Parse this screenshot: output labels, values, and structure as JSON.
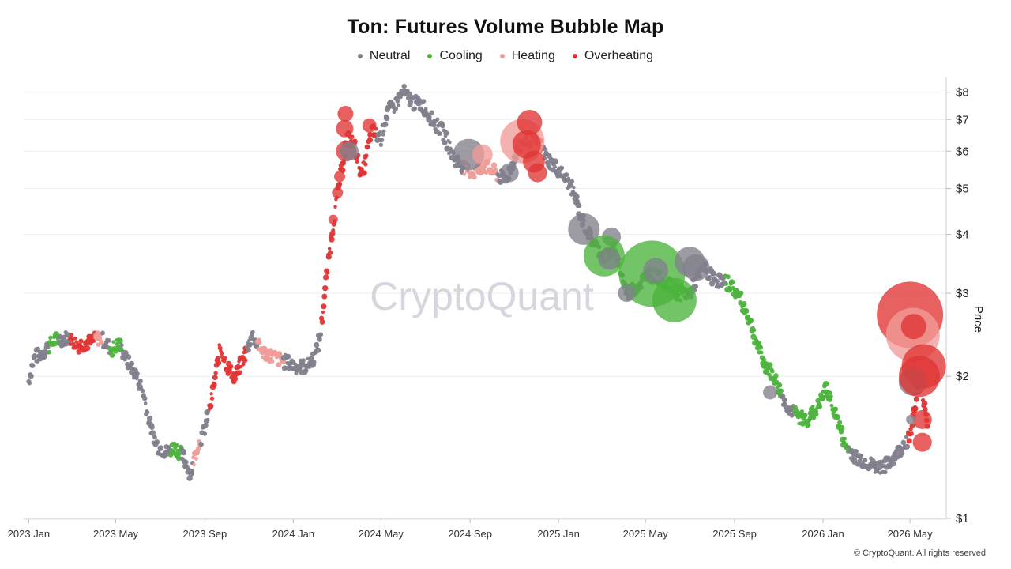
{
  "chart_data": {
    "type": "scatter",
    "title": "Ton: Futures Volume Bubble Map",
    "ylabel": "Price",
    "yscale": "log",
    "ylim": [
      1,
      8.4
    ],
    "y_ticks": [
      {
        "value": 8,
        "label": "$8"
      },
      {
        "value": 7,
        "label": "$7"
      },
      {
        "value": 6,
        "label": "$6"
      },
      {
        "value": 5,
        "label": "$5"
      },
      {
        "value": 4,
        "label": "$4"
      },
      {
        "value": 3,
        "label": "$3"
      },
      {
        "value": 2,
        "label": "$2"
      },
      {
        "value": 1,
        "label": "$1"
      }
    ],
    "x_ticks": [
      {
        "date": "2023-01-01",
        "label": "2023 Jan"
      },
      {
        "date": "2023-05-01",
        "label": "2023 May"
      },
      {
        "date": "2023-09-01",
        "label": "2023 Sep"
      },
      {
        "date": "2024-01-01",
        "label": "2024 Jan"
      },
      {
        "date": "2024-05-01",
        "label": "2024 May"
      },
      {
        "date": "2024-09-01",
        "label": "2024 Sep"
      },
      {
        "date": "2025-01-01",
        "label": "2025 Jan"
      },
      {
        "date": "2025-05-01",
        "label": "2025 May"
      },
      {
        "date": "2025-09-01",
        "label": "2025 Sep"
      },
      {
        "date": "2026-01-01",
        "label": "2026 Jan"
      },
      {
        "date": "2026-05-01",
        "label": "2026 May"
      }
    ],
    "xlim": [
      "2022-12-25",
      "2026-06-20"
    ],
    "legend_position": "top-center",
    "series": [
      {
        "name": "Neutral",
        "color": "#81808c"
      },
      {
        "name": "Cooling",
        "color": "#4cb33c"
      },
      {
        "name": "Heating",
        "color": "#ef9c98"
      },
      {
        "name": "Overheating",
        "color": "#e03535"
      }
    ],
    "price_path": [
      [
        "2023-01-01",
        1.95
      ],
      [
        "2023-01-07",
        2.18
      ],
      [
        "2023-01-20",
        2.25
      ],
      [
        "2023-02-05",
        2.38
      ],
      [
        "2023-02-25",
        2.42
      ],
      [
        "2023-03-10",
        2.33
      ],
      [
        "2023-03-25",
        2.36
      ],
      [
        "2023-04-10",
        2.42
      ],
      [
        "2023-04-25",
        2.28
      ],
      [
        "2023-05-05",
        2.35
      ],
      [
        "2023-05-15",
        2.18
      ],
      [
        "2023-05-28",
        2.02
      ],
      [
        "2023-06-08",
        1.85
      ],
      [
        "2023-06-18",
        1.55
      ],
      [
        "2023-06-28",
        1.42
      ],
      [
        "2023-07-10",
        1.38
      ],
      [
        "2023-07-22",
        1.42
      ],
      [
        "2023-08-02",
        1.35
      ],
      [
        "2023-08-12",
        1.25
      ],
      [
        "2023-08-22",
        1.42
      ],
      [
        "2023-09-01",
        1.55
      ],
      [
        "2023-09-10",
        1.78
      ],
      [
        "2023-09-22",
        2.3
      ],
      [
        "2023-10-02",
        2.1
      ],
      [
        "2023-10-12",
        1.98
      ],
      [
        "2023-10-25",
        2.2
      ],
      [
        "2023-11-05",
        2.45
      ],
      [
        "2023-11-20",
        2.25
      ],
      [
        "2023-12-05",
        2.2
      ],
      [
        "2023-12-20",
        2.15
      ],
      [
        "2024-01-05",
        2.1
      ],
      [
        "2024-01-20",
        2.1
      ],
      [
        "2024-02-01",
        2.22
      ],
      [
        "2024-02-08",
        2.5
      ],
      [
        "2024-02-18",
        3.5
      ],
      [
        "2024-02-25",
        4.2
      ],
      [
        "2024-03-05",
        5.2
      ],
      [
        "2024-03-15",
        6.4
      ],
      [
        "2024-03-25",
        6.2
      ],
      [
        "2024-04-05",
        5.3
      ],
      [
        "2024-04-18",
        6.6
      ],
      [
        "2024-05-01",
        6.4
      ],
      [
        "2024-05-10",
        7.3
      ],
      [
        "2024-05-20",
        7.5
      ],
      [
        "2024-06-01",
        8.0
      ],
      [
        "2024-06-15",
        7.6
      ],
      [
        "2024-06-28",
        7.5
      ],
      [
        "2024-07-10",
        7.0
      ],
      [
        "2024-07-25",
        6.6
      ],
      [
        "2024-08-10",
        5.8
      ],
      [
        "2024-08-25",
        5.5
      ],
      [
        "2024-09-05",
        5.4
      ],
      [
        "2024-09-20",
        5.6
      ],
      [
        "2024-10-05",
        5.4
      ],
      [
        "2024-10-20",
        5.2
      ],
      [
        "2024-11-05",
        6.0
      ],
      [
        "2024-11-20",
        6.4
      ],
      [
        "2024-12-05",
        6.2
      ],
      [
        "2024-12-20",
        5.7
      ],
      [
        "2025-01-05",
        5.4
      ],
      [
        "2025-01-20",
        5.0
      ],
      [
        "2025-02-05",
        4.2
      ],
      [
        "2025-02-20",
        3.8
      ],
      [
        "2025-03-05",
        3.6
      ],
      [
        "2025-03-20",
        3.7
      ],
      [
        "2025-04-05",
        3.0
      ],
      [
        "2025-04-20",
        3.1
      ],
      [
        "2025-05-05",
        3.3
      ],
      [
        "2025-05-25",
        3.2
      ],
      [
        "2025-06-15",
        3.0
      ],
      [
        "2025-07-01",
        3.0
      ],
      [
        "2025-07-20",
        3.4
      ],
      [
        "2025-08-05",
        3.2
      ],
      [
        "2025-08-25",
        3.15
      ],
      [
        "2025-09-10",
        2.9
      ],
      [
        "2025-09-25",
        2.55
      ],
      [
        "2025-10-10",
        2.15
      ],
      [
        "2025-10-25",
        2.0
      ],
      [
        "2025-11-10",
        1.75
      ],
      [
        "2025-11-25",
        1.65
      ],
      [
        "2025-12-10",
        1.62
      ],
      [
        "2025-12-25",
        1.72
      ],
      [
        "2026-01-05",
        1.88
      ],
      [
        "2026-01-18",
        1.68
      ],
      [
        "2026-02-01",
        1.42
      ],
      [
        "2026-02-15",
        1.35
      ],
      [
        "2026-03-01",
        1.32
      ],
      [
        "2026-03-15",
        1.28
      ],
      [
        "2026-04-01",
        1.3
      ],
      [
        "2026-04-15",
        1.38
      ],
      [
        "2026-05-01",
        1.5
      ],
      [
        "2026-05-15",
        2.0
      ],
      [
        "2026-05-25",
        1.6
      ]
    ],
    "bubbles": [
      {
        "date": "2024-03-13",
        "price": 7.2,
        "series": "Overheating",
        "size": 10
      },
      {
        "date": "2024-03-12",
        "price": 6.7,
        "series": "Overheating",
        "size": 11
      },
      {
        "date": "2024-03-14",
        "price": 6.0,
        "series": "Overheating",
        "size": 13
      },
      {
        "date": "2024-03-18",
        "price": 6.0,
        "series": "Neutral",
        "size": 12
      },
      {
        "date": "2024-04-15",
        "price": 6.8,
        "series": "Overheating",
        "size": 9
      },
      {
        "date": "2024-03-05",
        "price": 5.3,
        "series": "Overheating",
        "size": 7
      },
      {
        "date": "2024-03-02",
        "price": 4.9,
        "series": "Overheating",
        "size": 7
      },
      {
        "date": "2024-02-25",
        "price": 4.3,
        "series": "Overheating",
        "size": 6
      },
      {
        "date": "2024-08-30",
        "price": 5.9,
        "series": "Neutral",
        "size": 20
      },
      {
        "date": "2024-09-18",
        "price": 5.9,
        "series": "Heating",
        "size": 13
      },
      {
        "date": "2024-11-12",
        "price": 6.3,
        "series": "Heating",
        "size": 28
      },
      {
        "date": "2024-11-22",
        "price": 6.9,
        "series": "Overheating",
        "size": 16
      },
      {
        "date": "2024-11-18",
        "price": 6.2,
        "series": "Overheating",
        "size": 18
      },
      {
        "date": "2024-11-28",
        "price": 5.7,
        "series": "Overheating",
        "size": 14
      },
      {
        "date": "2024-12-03",
        "price": 5.4,
        "series": "Overheating",
        "size": 12
      },
      {
        "date": "2024-10-25",
        "price": 5.4,
        "series": "Neutral",
        "size": 12
      },
      {
        "date": "2025-02-05",
        "price": 4.1,
        "series": "Neutral",
        "size": 20
      },
      {
        "date": "2025-03-15",
        "price": 3.95,
        "series": "Neutral",
        "size": 12
      },
      {
        "date": "2025-03-05",
        "price": 3.6,
        "series": "Cooling",
        "size": 26
      },
      {
        "date": "2025-03-12",
        "price": 3.55,
        "series": "Neutral",
        "size": 14
      },
      {
        "date": "2025-05-10",
        "price": 3.3,
        "series": "Cooling",
        "size": 42
      },
      {
        "date": "2025-05-15",
        "price": 3.35,
        "series": "Neutral",
        "size": 16
      },
      {
        "date": "2025-06-10",
        "price": 2.9,
        "series": "Cooling",
        "size": 28
      },
      {
        "date": "2025-07-01",
        "price": 3.5,
        "series": "Neutral",
        "size": 19
      },
      {
        "date": "2025-07-10",
        "price": 3.4,
        "series": "Neutral",
        "size": 17
      },
      {
        "date": "2025-04-05",
        "price": 3.0,
        "series": "Neutral",
        "size": 11
      },
      {
        "date": "2025-10-20",
        "price": 1.85,
        "series": "Neutral",
        "size": 9
      },
      {
        "date": "2026-05-01",
        "price": 2.7,
        "series": "Overheating",
        "size": 42
      },
      {
        "date": "2026-05-05",
        "price": 2.45,
        "series": "Heating",
        "size": 34
      },
      {
        "date": "2026-05-20",
        "price": 2.1,
        "series": "Overheating",
        "size": 28
      },
      {
        "date": "2026-05-05",
        "price": 1.95,
        "series": "Neutral",
        "size": 18
      },
      {
        "date": "2026-05-14",
        "price": 2.0,
        "series": "Overheating",
        "size": 26
      },
      {
        "date": "2026-05-06",
        "price": 2.55,
        "series": "Overheating",
        "size": 16
      },
      {
        "date": "2026-05-18",
        "price": 1.62,
        "series": "Overheating",
        "size": 12
      },
      {
        "date": "2026-05-18",
        "price": 1.45,
        "series": "Overheating",
        "size": 12
      },
      {
        "date": "2026-05-02",
        "price": 1.62,
        "series": "Neutral",
        "size": 6
      }
    ],
    "segments": [
      {
        "from": "2023-01-01",
        "to": "2023-01-28",
        "series": "Neutral"
      },
      {
        "from": "2023-01-28",
        "to": "2023-02-12",
        "series": "Cooling"
      },
      {
        "from": "2023-02-12",
        "to": "2023-02-26",
        "series": "Neutral"
      },
      {
        "from": "2023-02-26",
        "to": "2023-03-12",
        "series": "Overheating"
      },
      {
        "from": "2023-03-12",
        "to": "2023-03-20",
        "series": "Overheating"
      },
      {
        "from": "2023-03-20",
        "to": "2023-04-02",
        "series": "Overheating"
      },
      {
        "from": "2023-04-02",
        "to": "2023-04-12",
        "series": "Heating"
      },
      {
        "from": "2023-04-12",
        "to": "2023-04-22",
        "series": "Neutral"
      },
      {
        "from": "2023-04-22",
        "to": "2023-05-08",
        "series": "Cooling"
      },
      {
        "from": "2023-05-08",
        "to": "2023-06-12",
        "series": "Neutral"
      },
      {
        "from": "2023-06-12",
        "to": "2023-07-15",
        "series": "Neutral"
      },
      {
        "from": "2023-07-15",
        "to": "2023-07-30",
        "series": "Cooling"
      },
      {
        "from": "2023-07-30",
        "to": "2023-08-15",
        "series": "Neutral"
      },
      {
        "from": "2023-08-15",
        "to": "2023-08-26",
        "series": "Heating"
      },
      {
        "from": "2023-08-26",
        "to": "2023-09-06",
        "series": "Neutral"
      },
      {
        "from": "2023-09-06",
        "to": "2023-10-28",
        "series": "Overheating"
      },
      {
        "from": "2023-10-28",
        "to": "2023-11-12",
        "series": "Neutral"
      },
      {
        "from": "2023-11-12",
        "to": "2023-12-18",
        "series": "Heating"
      },
      {
        "from": "2023-12-18",
        "to": "2024-02-08",
        "series": "Neutral"
      },
      {
        "from": "2024-02-08",
        "to": "2024-04-25",
        "series": "Overheating"
      },
      {
        "from": "2024-04-25",
        "to": "2024-08-22",
        "series": "Neutral"
      },
      {
        "from": "2024-08-22",
        "to": "2024-10-08",
        "series": "Heating"
      },
      {
        "from": "2024-10-08",
        "to": "2024-11-05",
        "series": "Neutral"
      },
      {
        "from": "2024-11-05",
        "to": "2024-12-10",
        "series": "Overheating"
      },
      {
        "from": "2024-12-10",
        "to": "2025-02-28",
        "series": "Neutral"
      },
      {
        "from": "2025-02-28",
        "to": "2025-03-28",
        "series": "Cooling"
      },
      {
        "from": "2025-03-28",
        "to": "2025-04-28",
        "series": "Neutral"
      },
      {
        "from": "2025-04-28",
        "to": "2025-06-28",
        "series": "Cooling"
      },
      {
        "from": "2025-06-28",
        "to": "2025-08-18",
        "series": "Neutral"
      },
      {
        "from": "2025-08-18",
        "to": "2025-11-05",
        "series": "Cooling"
      },
      {
        "from": "2025-11-05",
        "to": "2025-11-22",
        "series": "Neutral"
      },
      {
        "from": "2025-11-22",
        "to": "2026-02-05",
        "series": "Cooling"
      },
      {
        "from": "2026-02-05",
        "to": "2026-04-28",
        "series": "Neutral"
      },
      {
        "from": "2026-04-28",
        "to": "2026-05-31",
        "series": "Overheating"
      }
    ]
  },
  "watermark": "CryptoQuant",
  "footer": "© CryptoQuant. All rights reserved"
}
